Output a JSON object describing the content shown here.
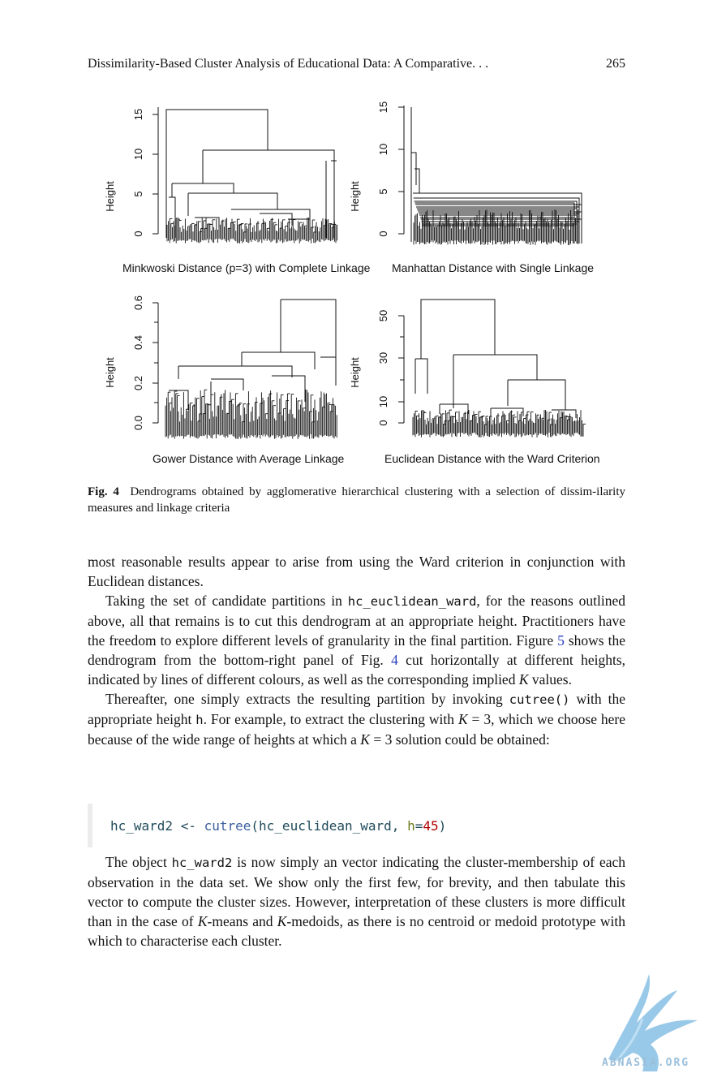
{
  "header": {
    "running_title": "Dissimilarity-Based Cluster Analysis of Educational Data: A Comparative. . .",
    "page_number": "265"
  },
  "figure": {
    "panels": [
      {
        "title": "Minkwoski Distance (p=3) with Complete Linkage",
        "ylabel": "Height",
        "yticks": [
          "0",
          "5",
          "10",
          "15"
        ]
      },
      {
        "title": "Manhattan Distance with Single Linkage",
        "ylabel": "Height",
        "yticks": [
          "0",
          "5",
          "10",
          "15"
        ]
      },
      {
        "title": "Gower Distance with Average Linkage",
        "ylabel": "Height",
        "yticks": [
          "0.0",
          "0.2",
          "0.4",
          "0.6"
        ]
      },
      {
        "title": "Euclidean Distance with the Ward Criterion",
        "ylabel": "Height",
        "yticks": [
          "0",
          "10",
          "30",
          "50"
        ]
      }
    ],
    "caption_label": "Fig. 4",
    "caption_text": "Dendrograms obtained by agglomerative hierarchical clustering with a selection of dissim-ilarity measures and linkage criteria"
  },
  "body": {
    "p1": "most reasonable results appear to arise from using the Ward criterion in conjunction with Euclidean distances.",
    "p2_a": "Taking the set of candidate partitions in ",
    "p2_code": "hc_euclidean_ward",
    "p2_b": ", for the reasons outlined above, all that remains is to cut this dendrogram at an appropriate height. Practitioners have the freedom to explore different levels of granularity in the final partition. Figure ",
    "p2_ref1": "5",
    "p2_c": " shows the dendrogram from the bottom-right panel of Fig. ",
    "p2_ref2": "4",
    "p2_d": " cut horizontally at different heights, indicated by lines of different colours, as well as the corresponding implied ",
    "p2_k": "K",
    "p2_e": " values.",
    "p3_a": "Thereafter, one simply extracts the resulting partition by invoking ",
    "p3_code1": "cutree()",
    "p3_b": " with the appropriate height ",
    "p3_code2": "h",
    "p3_c": ". For example, to extract the clustering with ",
    "p3_k1": "K",
    "p3_d": " = 3, which we choose here because of the wide range of heights at which a ",
    "p3_k2": "K",
    "p3_e": " = 3 solution could be obtained:",
    "code": {
      "var": "hc_ward2",
      "op": " <- ",
      "fn": "cutree",
      "open": "(",
      "arg1": "hc_euclidean_ward",
      "sep": ", ",
      "argname": "h",
      "eq": "=",
      "num": "45",
      "close": ")"
    },
    "p4_a": "The object ",
    "p4_code": "hc_ward2",
    "p4_b": " is now simply an vector indicating the cluster-membership of each observation in the data set. We show only the first few, for brevity, and then tabulate this vector to compute the cluster sizes. However, interpretation of these clusters is more difficult than in the case of ",
    "p4_k1": "K",
    "p4_c": "-means and ",
    "p4_k2": "K",
    "p4_d": "-medoids, as there is no centroid or medoid prototype with which to characterise each cluster."
  },
  "watermark": {
    "text": "ABNASIA.ORG"
  }
}
